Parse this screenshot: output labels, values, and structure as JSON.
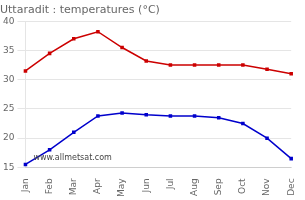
{
  "chart_data": {
    "type": "line",
    "title": "Uttaradit : temperatures (°C)",
    "categories": [
      "Jan",
      "Feb",
      "Mar",
      "Apr",
      "May",
      "Jun",
      "Jul",
      "Aug",
      "Sep",
      "Oct",
      "Nov",
      "Dec"
    ],
    "series": [
      {
        "color": "#cc0000",
        "values": [
          31.5,
          34.5,
          37.0,
          38.2,
          35.5,
          33.2,
          32.5,
          32.5,
          32.5,
          32.5,
          31.8,
          31.0
        ]
      },
      {
        "color": "#0000cc",
        "values": [
          15.5,
          18.0,
          21.0,
          23.8,
          24.3,
          24.0,
          23.8,
          23.8,
          23.5,
          22.5,
          20.0,
          16.5
        ]
      }
    ],
    "marker": "square",
    "line_style": "solid",
    "ylim": [
      15,
      40
    ],
    "yticks": [
      15,
      20,
      25,
      30,
      35,
      40
    ],
    "grid": "y",
    "annotation": "www.allmetsat.com"
  }
}
